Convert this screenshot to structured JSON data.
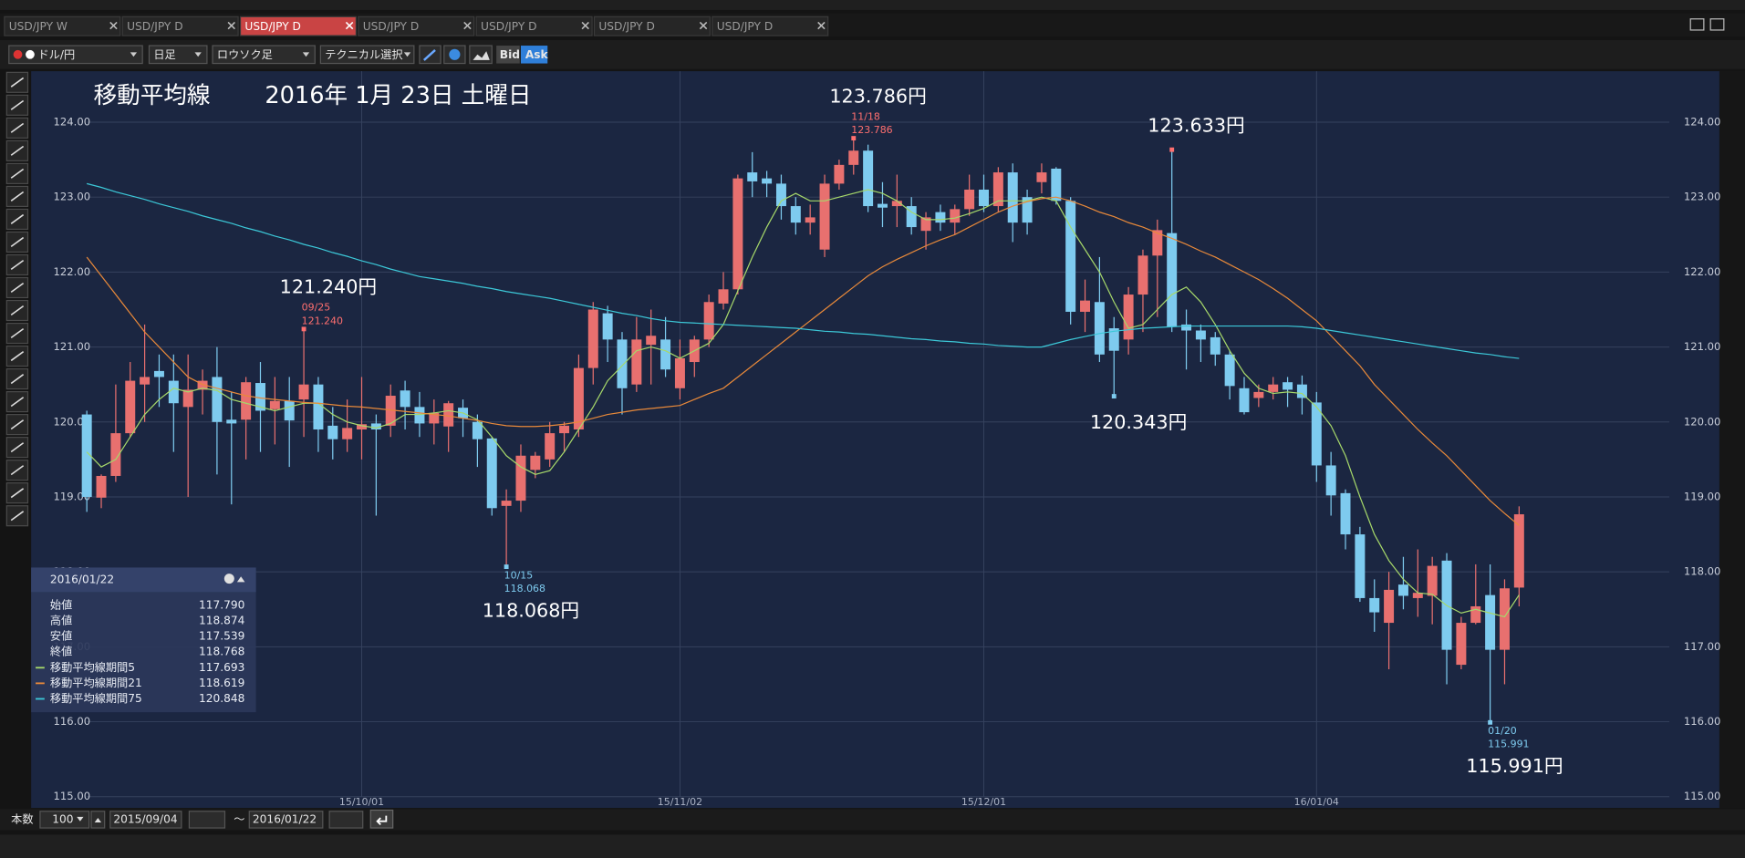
{
  "ui": {
    "tabs": [
      "USD/JPY W",
      "USD/JPY D",
      "USD/JPY D",
      "USD/JPY D",
      "USD/JPY D",
      "USD/JPY D",
      "USD/JPY D"
    ],
    "active_tab": 2,
    "toolbar": {
      "currency": "ドル/円",
      "period": "日足",
      "chart_style": "ロウソク足",
      "technical": "テクニカル選択",
      "bid": "Bid",
      "ask": "Ask"
    },
    "bottom_bar": {
      "count_label": "本数",
      "count": "100",
      "from": "2015/09/04",
      "tilde": "～",
      "to": "2016/01/22"
    },
    "info_box": {
      "date": "2016/01/22",
      "rows": [
        [
          "始値",
          "117.790"
        ],
        [
          "高値",
          "118.874"
        ],
        [
          "安値",
          "117.539"
        ],
        [
          "終値",
          "118.768"
        ],
        [
          "移動平均線期間5",
          "117.693"
        ],
        [
          "移動平均線期間21",
          "118.619"
        ],
        [
          "移動平均線期間75",
          "120.848"
        ]
      ]
    }
  },
  "chart_data": {
    "type": "candlestick",
    "title": "移動平均線",
    "subtitle": "2016年 1月 23日 土曜日",
    "categories": [
      null,
      null,
      null,
      null,
      null,
      null,
      null,
      null,
      null,
      null,
      null,
      null,
      null,
      null,
      null,
      null,
      null,
      null,
      null,
      "15/10/01",
      null,
      null,
      null,
      null,
      null,
      null,
      null,
      null,
      null,
      null,
      null,
      null,
      null,
      null,
      null,
      null,
      null,
      null,
      null,
      null,
      null,
      "15/11/02",
      null,
      null,
      null,
      null,
      null,
      null,
      null,
      null,
      null,
      null,
      null,
      null,
      null,
      null,
      null,
      null,
      null,
      null,
      null,
      null,
      "15/12/01",
      null,
      null,
      null,
      null,
      null,
      null,
      null,
      null,
      null,
      null,
      null,
      null,
      null,
      null,
      null,
      null,
      null,
      null,
      null,
      null,
      null,
      null,
      "16/01/04",
      null,
      null,
      null,
      null,
      null,
      null,
      null,
      null,
      null,
      null,
      null,
      null,
      null,
      null
    ],
    "open": [
      120.1,
      118.99,
      119.28,
      119.85,
      120.5,
      120.68,
      120.55,
      120.2,
      120.43,
      120.6,
      120.03,
      120.03,
      120.52,
      120.17,
      120.28,
      120.3,
      120.5,
      119.95,
      119.77,
      119.9,
      119.98,
      119.95,
      120.42,
      120.2,
      119.98,
      119.94,
      120.19,
      120.0,
      119.78,
      118.88,
      118.95,
      119.36,
      119.5,
      119.85,
      119.9,
      120.72,
      121.45,
      121.1,
      120.5,
      121.03,
      121.1,
      120.45,
      120.8,
      121.1,
      121.58,
      121.77,
      123.33,
      123.25,
      123.18,
      122.88,
      122.66,
      122.3,
      123.18,
      123.43,
      123.62,
      122.91,
      122.88,
      122.88,
      122.55,
      122.8,
      122.66,
      122.84,
      123.1,
      122.88,
      123.33,
      123.0,
      123.2,
      123.38,
      122.95,
      121.47,
      121.6,
      121.25,
      121.1,
      121.7,
      122.22,
      122.52,
      121.3,
      121.22,
      121.13,
      120.9,
      120.45,
      120.32,
      120.4,
      120.53,
      120.5,
      120.26,
      119.42,
      119.05,
      118.5,
      117.65,
      117.32,
      117.83,
      117.65,
      117.68,
      118.15,
      116.76,
      117.32,
      117.69,
      116.96,
      117.79
    ],
    "high": [
      120.15,
      119.3,
      120.5,
      120.8,
      121.3,
      120.9,
      120.9,
      120.9,
      120.7,
      121.0,
      120.4,
      120.6,
      120.8,
      120.6,
      120.6,
      121.24,
      120.6,
      120.2,
      120.3,
      120.6,
      120.1,
      120.5,
      120.55,
      120.4,
      120.3,
      120.28,
      120.3,
      120.1,
      119.8,
      119.1,
      119.7,
      119.6,
      120.0,
      120.0,
      120.9,
      121.6,
      121.55,
      121.2,
      121.4,
      121.5,
      121.4,
      121.1,
      121.15,
      121.7,
      122.0,
      123.3,
      123.6,
      123.35,
      123.3,
      123.0,
      122.9,
      123.3,
      123.5,
      123.786,
      123.7,
      123.2,
      123.3,
      123.0,
      122.8,
      122.9,
      122.9,
      123.3,
      123.3,
      123.4,
      123.45,
      123.1,
      123.45,
      123.4,
      123.0,
      121.9,
      122.2,
      121.4,
      121.8,
      122.3,
      122.7,
      123.633,
      121.5,
      121.3,
      121.2,
      120.95,
      120.6,
      120.5,
      120.6,
      120.6,
      120.62,
      120.4,
      119.6,
      119.1,
      118.6,
      117.9,
      118.0,
      118.2,
      118.3,
      118.2,
      118.25,
      117.4,
      118.1,
      118.1,
      117.9,
      118.874
    ],
    "low": [
      118.8,
      118.85,
      119.2,
      119.8,
      120.0,
      120.2,
      119.6,
      119.0,
      120.1,
      119.3,
      118.9,
      119.5,
      119.6,
      119.7,
      119.4,
      119.8,
      119.6,
      119.5,
      119.6,
      119.5,
      118.75,
      119.8,
      119.9,
      119.8,
      119.7,
      119.6,
      119.8,
      119.4,
      118.75,
      118.068,
      118.8,
      119.25,
      119.4,
      119.6,
      119.8,
      120.5,
      120.8,
      120.1,
      120.4,
      120.5,
      120.6,
      120.3,
      120.6,
      121.0,
      121.5,
      121.7,
      123.0,
      123.0,
      122.7,
      122.5,
      122.5,
      122.2,
      123.1,
      123.3,
      122.8,
      122.6,
      122.6,
      122.5,
      122.3,
      122.55,
      122.5,
      122.75,
      122.8,
      122.8,
      122.4,
      122.5,
      123.05,
      122.9,
      121.3,
      121.2,
      120.8,
      120.343,
      120.9,
      121.2,
      121.4,
      121.2,
      120.7,
      120.8,
      120.75,
      120.3,
      120.1,
      120.2,
      120.3,
      120.2,
      120.1,
      119.2,
      118.75,
      118.3,
      117.6,
      117.2,
      116.7,
      117.5,
      117.4,
      117.3,
      116.5,
      116.7,
      117.3,
      115.991,
      116.5,
      117.539
    ],
    "close": [
      119.0,
      119.28,
      119.85,
      120.55,
      120.6,
      120.6,
      120.25,
      120.43,
      120.55,
      120.0,
      119.98,
      120.53,
      120.15,
      120.28,
      120.02,
      120.5,
      119.9,
      119.77,
      119.92,
      119.97,
      119.9,
      120.35,
      120.2,
      119.98,
      120.12,
      120.25,
      120.05,
      119.77,
      118.85,
      118.95,
      119.55,
      119.55,
      119.85,
      119.95,
      120.72,
      121.5,
      121.1,
      120.45,
      121.1,
      121.15,
      120.7,
      120.85,
      121.1,
      121.6,
      121.77,
      123.25,
      123.21,
      123.18,
      122.88,
      122.66,
      122.73,
      123.18,
      123.43,
      123.62,
      122.88,
      122.86,
      122.95,
      122.6,
      122.73,
      122.66,
      122.84,
      123.1,
      122.88,
      123.33,
      122.66,
      122.66,
      123.33,
      122.95,
      121.47,
      121.62,
      120.9,
      120.95,
      121.7,
      122.22,
      122.56,
      121.27,
      121.22,
      121.1,
      120.9,
      120.48,
      120.13,
      120.4,
      120.5,
      120.43,
      120.32,
      119.42,
      119.02,
      118.5,
      117.65,
      117.46,
      117.76,
      117.68,
      117.72,
      118.08,
      116.96,
      117.32,
      117.54,
      116.96,
      117.78,
      118.768
    ],
    "up_color": "#e8706f",
    "down_color": "#7ecbef",
    "series": [
      {
        "name": "移動平均線期間5",
        "color": "#a6d86a",
        "values": [
          119.6,
          119.4,
          119.5,
          119.8,
          120.1,
          120.3,
          120.45,
          120.4,
          120.45,
          120.42,
          120.3,
          120.25,
          120.2,
          120.15,
          120.2,
          120.25,
          120.25,
          120.1,
          120.0,
          119.95,
          119.92,
          119.98,
          120.1,
          120.1,
          120.12,
          120.15,
          120.12,
          120.03,
          119.8,
          119.55,
          119.4,
          119.3,
          119.35,
          119.6,
          119.9,
          120.2,
          120.55,
          120.75,
          120.95,
          121.0,
          120.95,
          120.85,
          120.95,
          121.05,
          121.3,
          121.75,
          122.2,
          122.6,
          122.95,
          123.05,
          122.95,
          122.95,
          123.0,
          123.05,
          123.1,
          123.05,
          122.95,
          122.8,
          122.7,
          122.7,
          122.72,
          122.78,
          122.85,
          122.95,
          122.95,
          122.95,
          123.0,
          122.95,
          122.6,
          122.3,
          122.0,
          121.6,
          121.25,
          121.3,
          121.5,
          121.7,
          121.8,
          121.6,
          121.3,
          120.95,
          120.65,
          120.45,
          120.38,
          120.4,
          120.38,
          120.2,
          119.95,
          119.55,
          119.0,
          118.5,
          118.15,
          117.9,
          117.72,
          117.7,
          117.55,
          117.45,
          117.5,
          117.45,
          117.4,
          117.693
        ]
      },
      {
        "name": "移動平均線期間21",
        "color": "#e8893a",
        "values": [
          122.2,
          121.95,
          121.7,
          121.45,
          121.2,
          121.0,
          120.8,
          120.6,
          120.5,
          120.45,
          120.4,
          120.35,
          120.32,
          120.3,
          120.28,
          120.26,
          120.25,
          120.23,
          120.21,
          120.2,
          120.18,
          120.16,
          120.14,
          120.12,
          120.1,
          120.08,
          120.05,
          120.02,
          119.98,
          119.95,
          119.94,
          119.94,
          119.95,
          119.97,
          120.0,
          120.05,
          120.1,
          120.13,
          120.16,
          120.18,
          120.2,
          120.22,
          120.3,
          120.38,
          120.45,
          120.6,
          120.75,
          120.9,
          121.05,
          121.2,
          121.35,
          121.5,
          121.65,
          121.8,
          121.95,
          122.07,
          122.17,
          122.26,
          122.35,
          122.43,
          122.5,
          122.6,
          122.7,
          122.8,
          122.88,
          122.94,
          122.98,
          123.0,
          122.95,
          122.88,
          122.8,
          122.74,
          122.66,
          122.6,
          122.52,
          122.45,
          122.37,
          122.28,
          122.2,
          122.1,
          122.0,
          121.9,
          121.78,
          121.65,
          121.5,
          121.35,
          121.15,
          120.95,
          120.75,
          120.5,
          120.3,
          120.1,
          119.9,
          119.72,
          119.55,
          119.35,
          119.15,
          118.95,
          118.78,
          118.619
        ]
      },
      {
        "name": "移動平均線期間75",
        "color": "#3cc8d8",
        "values": [
          123.18,
          123.13,
          123.07,
          123.02,
          122.97,
          122.91,
          122.86,
          122.81,
          122.75,
          122.7,
          122.65,
          122.59,
          122.54,
          122.48,
          122.43,
          122.37,
          122.32,
          122.26,
          122.21,
          122.15,
          122.1,
          122.04,
          121.99,
          121.94,
          121.91,
          121.88,
          121.85,
          121.81,
          121.78,
          121.74,
          121.71,
          121.68,
          121.65,
          121.61,
          121.57,
          121.53,
          121.49,
          121.45,
          121.42,
          121.38,
          121.35,
          121.33,
          121.32,
          121.31,
          121.3,
          121.29,
          121.28,
          121.27,
          121.26,
          121.25,
          121.23,
          121.21,
          121.2,
          121.18,
          121.17,
          121.15,
          121.13,
          121.11,
          121.1,
          121.08,
          121.07,
          121.05,
          121.04,
          121.02,
          121.01,
          121.0,
          121.0,
          121.05,
          121.1,
          121.14,
          121.18,
          121.21,
          121.23,
          121.25,
          121.26,
          121.27,
          121.28,
          121.28,
          121.28,
          121.28,
          121.28,
          121.28,
          121.28,
          121.28,
          121.27,
          121.25,
          121.22,
          121.19,
          121.16,
          121.13,
          121.1,
          121.07,
          121.04,
          121.01,
          120.98,
          120.95,
          120.92,
          120.9,
          120.87,
          120.848
        ]
      }
    ],
    "ylim": [
      114.85,
      124.68
    ],
    "yticks": [
      {
        "value": 115,
        "label": "115.00"
      },
      {
        "value": 116,
        "label": "116.00"
      },
      {
        "value": 117,
        "label": "117.00"
      },
      {
        "value": 118,
        "label": "118.00"
      },
      {
        "value": 119,
        "label": "119.00"
      },
      {
        "value": 120,
        "label": "120.00"
      },
      {
        "value": 121,
        "label": "121.00"
      },
      {
        "value": 122,
        "label": "122.00"
      },
      {
        "value": 123,
        "label": "123.00"
      },
      {
        "value": 124,
        "label": "124.00"
      }
    ],
    "grid": true,
    "annotations": [
      {
        "text": "121.240円",
        "date": "09/25",
        "value": 121.24,
        "value_label": "121.240"
      },
      {
        "text": "118.068円",
        "date": "10/15",
        "value": 118.068
      },
      {
        "text": "123.786円",
        "date": "11/18",
        "value": 123.786
      },
      {
        "text": "120.343円",
        "value": 120.343
      },
      {
        "text": "123.633円",
        "value": 123.633
      },
      {
        "text": "115.991円",
        "date": "01/20",
        "value": 115.991
      }
    ]
  }
}
